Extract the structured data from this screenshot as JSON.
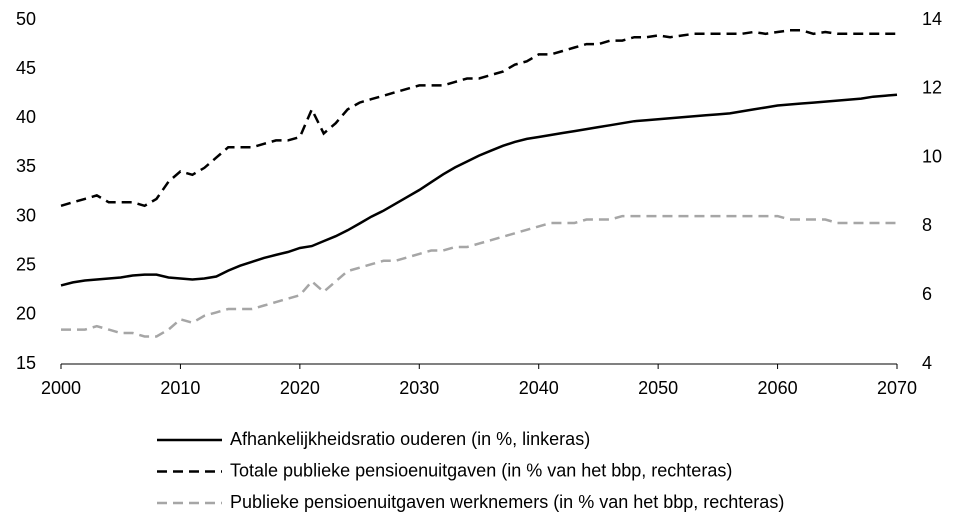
{
  "chart_data": {
    "type": "line",
    "x": [
      2000,
      2001,
      2002,
      2003,
      2004,
      2005,
      2006,
      2007,
      2008,
      2009,
      2010,
      2011,
      2012,
      2013,
      2014,
      2015,
      2016,
      2017,
      2018,
      2019,
      2020,
      2021,
      2022,
      2023,
      2024,
      2025,
      2026,
      2027,
      2028,
      2029,
      2030,
      2031,
      2032,
      2033,
      2034,
      2035,
      2036,
      2037,
      2038,
      2039,
      2040,
      2041,
      2042,
      2043,
      2044,
      2045,
      2046,
      2047,
      2048,
      2049,
      2050,
      2051,
      2052,
      2053,
      2054,
      2055,
      2056,
      2057,
      2058,
      2059,
      2060,
      2061,
      2062,
      2063,
      2064,
      2065,
      2066,
      2067,
      2068,
      2069,
      2070
    ],
    "series": [
      {
        "name": "Afhankelijkheidsratio ouderen (in %, linkeras)",
        "color": "#000000",
        "dash": "solid",
        "values": [
          23.0,
          23.3,
          23.5,
          23.6,
          23.7,
          23.8,
          24.0,
          24.1,
          24.1,
          23.8,
          23.7,
          23.6,
          23.7,
          23.9,
          24.5,
          25.0,
          25.4,
          25.8,
          26.1,
          26.4,
          26.8,
          27.0,
          27.5,
          28.0,
          28.6,
          29.3,
          30.0,
          30.6,
          31.3,
          32.0,
          32.7,
          33.5,
          34.3,
          35.0,
          35.6,
          36.2,
          36.7,
          37.2,
          37.6,
          37.9,
          38.1,
          38.3,
          38.5,
          38.7,
          38.9,
          39.1,
          39.3,
          39.5,
          39.7,
          39.8,
          39.9,
          40.0,
          40.1,
          40.2,
          40.3,
          40.4,
          40.5,
          40.7,
          40.9,
          41.1,
          41.3,
          41.4,
          41.5,
          41.6,
          41.7,
          41.8,
          41.9,
          42.0,
          42.2,
          42.3,
          42.4
        ]
      },
      {
        "name": "Totale publieke pensioenuitgaven (in % van het bbp, rechteras)",
        "color": "#000000",
        "dash": "dashed",
        "axis": "y2",
        "values": [
          8.6,
          8.7,
          8.8,
          8.9,
          8.7,
          8.7,
          8.7,
          8.6,
          8.8,
          9.3,
          9.6,
          9.5,
          9.7,
          10.0,
          10.3,
          10.3,
          10.3,
          10.4,
          10.5,
          10.5,
          10.6,
          11.4,
          10.7,
          11.0,
          11.4,
          11.6,
          11.7,
          11.8,
          11.9,
          12.0,
          12.1,
          12.1,
          12.1,
          12.2,
          12.3,
          12.3,
          12.4,
          12.5,
          12.7,
          12.8,
          13.0,
          13.0,
          13.1,
          13.2,
          13.3,
          13.3,
          13.4,
          13.4,
          13.5,
          13.5,
          13.55,
          13.5,
          13.55,
          13.6,
          13.6,
          13.6,
          13.6,
          13.6,
          13.65,
          13.6,
          13.65,
          13.7,
          13.7,
          13.6,
          13.65,
          13.6,
          13.6,
          13.6,
          13.6,
          13.6,
          13.6
        ]
      },
      {
        "name": "Publieke pensioenuitgaven werknemers (in % van het bbp, rechteras)",
        "color": "#a6a6a6",
        "dash": "dashed",
        "axis": "y2",
        "values": [
          5.0,
          5.0,
          5.0,
          5.1,
          5.0,
          4.9,
          4.9,
          4.8,
          4.8,
          5.0,
          5.3,
          5.2,
          5.4,
          5.5,
          5.6,
          5.6,
          5.6,
          5.7,
          5.8,
          5.9,
          6.0,
          6.4,
          6.1,
          6.4,
          6.7,
          6.8,
          6.9,
          7.0,
          7.0,
          7.1,
          7.2,
          7.3,
          7.3,
          7.4,
          7.4,
          7.5,
          7.6,
          7.7,
          7.8,
          7.9,
          8.0,
          8.1,
          8.1,
          8.1,
          8.2,
          8.2,
          8.2,
          8.3,
          8.3,
          8.3,
          8.3,
          8.3,
          8.3,
          8.3,
          8.3,
          8.3,
          8.3,
          8.3,
          8.3,
          8.3,
          8.3,
          8.2,
          8.2,
          8.2,
          8.2,
          8.1,
          8.1,
          8.1,
          8.1,
          8.1,
          8.1
        ]
      }
    ],
    "xlim": [
      2000,
      2070
    ],
    "xticks": [
      2000,
      2010,
      2020,
      2030,
      2040,
      2050,
      2060,
      2070
    ],
    "ylim": [
      15,
      50
    ],
    "yticks": [
      15,
      20,
      25,
      30,
      35,
      40,
      45,
      50
    ],
    "y2lim": [
      4,
      14
    ],
    "y2ticks": [
      4,
      6,
      8,
      10,
      12,
      14
    ],
    "grid": false,
    "legend": "bottom"
  }
}
